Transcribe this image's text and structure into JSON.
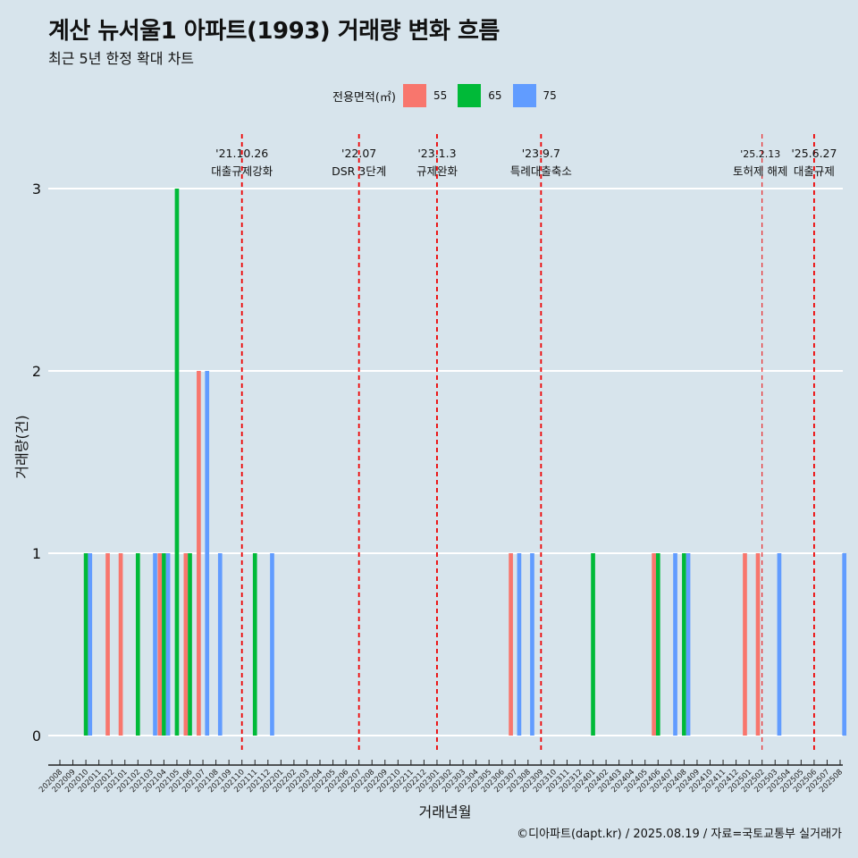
{
  "title": "계산 뉴서울1 아파트(1993) 거래량 변화 흐름",
  "subtitle": "최근 5년 한정 확대 차트",
  "caption": "©디아파트(dapt.kr) / 2025.08.19 / 자료=국토교통부 실거래가",
  "colors": {
    "background": "#d7e4ec",
    "55": "#f8766d",
    "65": "#00ba38",
    "75": "#619cff",
    "event_line": "#ee0000"
  },
  "chart_data": {
    "type": "bar",
    "title": "계산 뉴서울1 아파트(1993) 거래량 변화 흐름",
    "subtitle": "최근 5년 한정 확대 차트",
    "xlabel": "거래년월",
    "ylabel": "거래량(건)",
    "ylim": [
      0,
      3
    ],
    "yticks": [
      0,
      1,
      2,
      3
    ],
    "grid": "horizontal",
    "legend_placement": "top",
    "legend_title": "전용면적(㎡)",
    "categories": [
      "202008",
      "202009",
      "202010",
      "202011",
      "202012",
      "202101",
      "202102",
      "202103",
      "202104",
      "202105",
      "202106",
      "202107",
      "202108",
      "202109",
      "202110",
      "202111",
      "202112",
      "202201",
      "202202",
      "202203",
      "202204",
      "202205",
      "202206",
      "202207",
      "202208",
      "202209",
      "202210",
      "202211",
      "202212",
      "202301",
      "202302",
      "202303",
      "202304",
      "202305",
      "202306",
      "202307",
      "202308",
      "202309",
      "202310",
      "202311",
      "202312",
      "202401",
      "202402",
      "202403",
      "202404",
      "202405",
      "202406",
      "202407",
      "202408",
      "202409",
      "202410",
      "202411",
      "202412",
      "202501",
      "202502",
      "202503",
      "202504",
      "202505",
      "202506",
      "202507",
      "202508"
    ],
    "series": [
      {
        "name": "55",
        "values": [
          0,
          0,
          0,
          0,
          1,
          1,
          0,
          0,
          1,
          0,
          1,
          2,
          0,
          0,
          0,
          0,
          0,
          0,
          0,
          0,
          0,
          0,
          0,
          0,
          0,
          0,
          0,
          0,
          0,
          0,
          0,
          0,
          0,
          0,
          0,
          1,
          0,
          0,
          0,
          0,
          0,
          0,
          0,
          0,
          0,
          0,
          1,
          0,
          0,
          0,
          0,
          0,
          0,
          1,
          1,
          0,
          0,
          0,
          0,
          0,
          0
        ]
      },
      {
        "name": "65",
        "values": [
          0,
          0,
          1,
          0,
          0,
          0,
          1,
          0,
          1,
          3,
          1,
          0,
          0,
          0,
          0,
          1,
          0,
          0,
          0,
          0,
          0,
          0,
          0,
          0,
          0,
          0,
          0,
          0,
          0,
          0,
          0,
          0,
          0,
          0,
          0,
          0,
          0,
          0,
          0,
          0,
          0,
          1,
          0,
          0,
          0,
          0,
          1,
          0,
          1,
          0,
          0,
          0,
          0,
          0,
          0,
          0,
          0,
          0,
          0,
          0,
          0
        ]
      },
      {
        "name": "75",
        "values": [
          0,
          0,
          1,
          0,
          0,
          0,
          0,
          1,
          1,
          0,
          0,
          2,
          1,
          0,
          0,
          0,
          1,
          0,
          0,
          0,
          0,
          0,
          0,
          0,
          0,
          0,
          0,
          0,
          0,
          0,
          0,
          0,
          0,
          0,
          0,
          1,
          1,
          0,
          0,
          0,
          0,
          0,
          0,
          0,
          0,
          0,
          0,
          1,
          1,
          0,
          0,
          0,
          0,
          0,
          0,
          1,
          0,
          0,
          0,
          0,
          1
        ]
      }
    ],
    "annotations": [
      {
        "x": "202110",
        "date": "'21.10.26",
        "label": "대출규제강화"
      },
      {
        "x": "202207",
        "date": "'22.07",
        "label": "DSR 3단계"
      },
      {
        "x": "202301",
        "date": "'23.1.3",
        "label": "규제완화"
      },
      {
        "x": "202309",
        "date": "'23.9.7",
        "label": "특례대출축소"
      },
      {
        "x": "202502",
        "date": "'25.2.13",
        "label": "토허제 해제"
      },
      {
        "x": "202506",
        "date": "'25.6.27",
        "label": "대출규제"
      }
    ]
  }
}
